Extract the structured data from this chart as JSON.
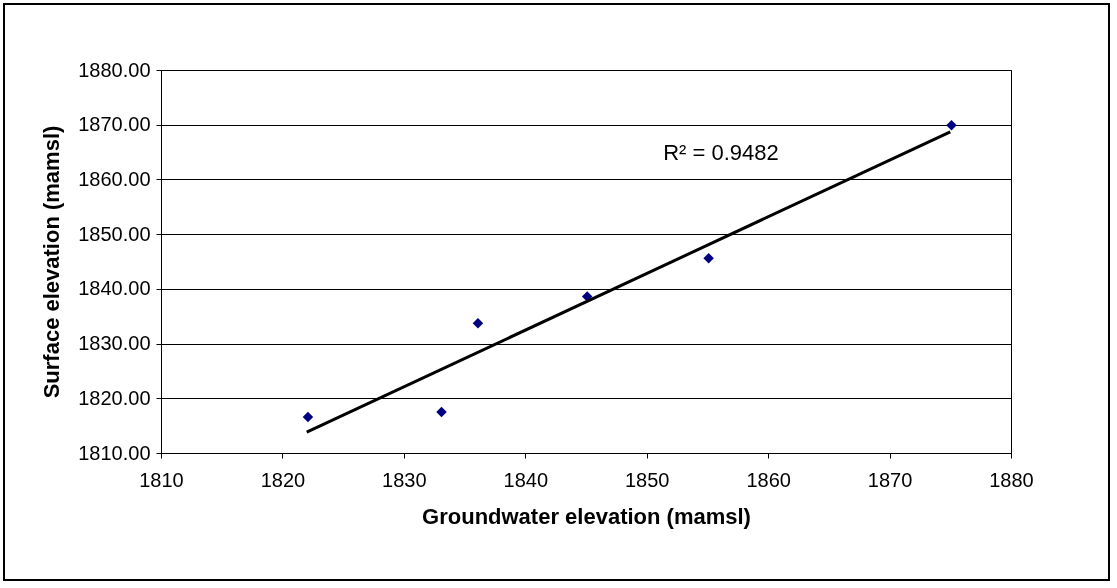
{
  "chart_data": {
    "type": "scatter",
    "xlabel": "Groundwater elevation (mamsl)",
    "ylabel": "Surface elevation (mamsl)",
    "x": [
      1822.1,
      1833.1,
      1836.1,
      1845.1,
      1855.1,
      1875.1
    ],
    "series": [
      {
        "color": "#000080",
        "marker": "diamond",
        "values": [
          1816.6,
          1817.5,
          1833.7,
          1838.6,
          1845.6,
          1869.9
        ]
      },
      {
        "type": "line",
        "color": "#000000",
        "marker": "none",
        "x": [
          1822,
          1875
        ],
        "values": [
          1813.8,
          1868.7
        ]
      }
    ],
    "xlim": [
      1810,
      1880
    ],
    "xticks": [
      1810,
      1820,
      1830,
      1840,
      1850,
      1860,
      1870,
      1880
    ],
    "ylim": [
      1810,
      1880
    ],
    "yticks": [
      {
        "value": 1810,
        "label": "1810.00"
      },
      {
        "value": 1820,
        "label": "1820.00"
      },
      {
        "value": 1830,
        "label": "1830.00"
      },
      {
        "value": 1840,
        "label": "1840.00"
      },
      {
        "value": 1850,
        "label": "1850.00"
      },
      {
        "value": 1860,
        "label": "1860.00"
      },
      {
        "value": 1870,
        "label": "1870.00"
      },
      {
        "value": 1880,
        "label": "1880.00"
      }
    ],
    "grid": "y",
    "annotations": [
      "R² = 0.9482"
    ]
  }
}
